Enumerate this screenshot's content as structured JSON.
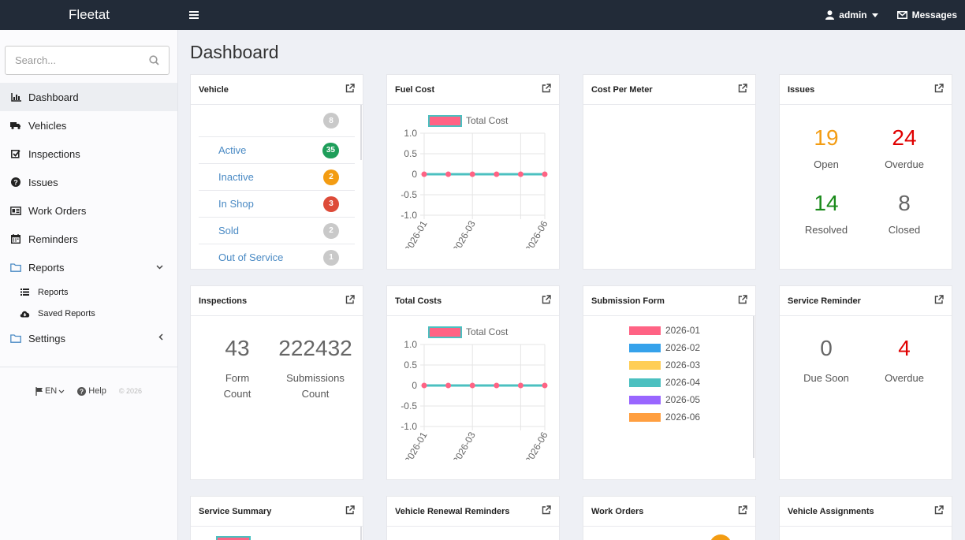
{
  "app": {
    "brand": "Fleetat"
  },
  "topbar": {
    "user": "admin",
    "messages": "Messages"
  },
  "search": {
    "placeholder": "Search..."
  },
  "sidebar": {
    "items": [
      {
        "label": "Dashboard"
      },
      {
        "label": "Vehicles"
      },
      {
        "label": "Inspections"
      },
      {
        "label": "Issues"
      },
      {
        "label": "Work Orders"
      },
      {
        "label": "Reminders"
      },
      {
        "label": "Reports"
      },
      {
        "label": "Settings"
      }
    ],
    "reports_sub": [
      {
        "label": "Reports"
      },
      {
        "label": "Saved Reports"
      }
    ],
    "footer": {
      "lang": "EN",
      "help": "Help",
      "copyright": "© 2026"
    }
  },
  "page": {
    "title": "Dashboard"
  },
  "cards": {
    "vehicle": {
      "title": "Vehicle",
      "top_count": "8",
      "rows": [
        {
          "label": "Active",
          "count": "35",
          "color": "#1e9e5a"
        },
        {
          "label": "Inactive",
          "count": "2",
          "color": "#f39c12"
        },
        {
          "label": "In Shop",
          "count": "3",
          "color": "#dd4b39"
        },
        {
          "label": "Sold",
          "count": "2",
          "color": "#c9c9c9"
        },
        {
          "label": "Out of Service",
          "count": "1",
          "color": "#c9c9c9"
        }
      ]
    },
    "fuel_cost": {
      "title": "Fuel Cost"
    },
    "cost_per_meter": {
      "title": "Cost Per Meter"
    },
    "issues": {
      "title": "Issues",
      "stats": [
        {
          "value": "19",
          "label": "Open",
          "color": "#f39c12"
        },
        {
          "value": "24",
          "label": "Overdue",
          "color": "#e00000"
        },
        {
          "value": "14",
          "label": "Resolved",
          "color": "#1a8a1a"
        },
        {
          "value": "8",
          "label": "Closed",
          "color": "#666666"
        }
      ]
    },
    "inspections": {
      "title": "Inspections",
      "stats": [
        {
          "value": "43",
          "label": "Form Count"
        },
        {
          "value": "222432",
          "label": "Submissions Count"
        }
      ]
    },
    "total_costs": {
      "title": "Total Costs"
    },
    "submission_form": {
      "title": "Submission Form",
      "legend": [
        {
          "label": "2026-01",
          "color": "#ff6384"
        },
        {
          "label": "2026-02",
          "color": "#36a2eb"
        },
        {
          "label": "2026-03",
          "color": "#ffce56"
        },
        {
          "label": "2026-04",
          "color": "#4bc0c0"
        },
        {
          "label": "2026-05",
          "color": "#9966ff"
        },
        {
          "label": "2026-06",
          "color": "#ff9f40"
        }
      ]
    },
    "service_reminder": {
      "title": "Service Reminder",
      "stats": [
        {
          "value": "0",
          "label": "Due Soon",
          "color": "#666666"
        },
        {
          "value": "4",
          "label": "Overdue",
          "color": "#e00000"
        }
      ]
    },
    "service_summary": {
      "title": "Service Summary"
    },
    "vehicle_renewal": {
      "title": "Vehicle Renewal Reminders"
    },
    "work_orders": {
      "title": "Work Orders"
    },
    "vehicle_assignments": {
      "title": "Vehicle Assignments"
    }
  },
  "chart_data": [
    {
      "type": "line",
      "legend": [
        "Total Cost"
      ],
      "x": [
        "2026-01",
        "2026-02",
        "2026-03",
        "2026-04",
        "2026-05",
        "2026-06"
      ],
      "x_tick_labels": [
        "2026-01",
        "2026-03",
        "2026-06"
      ],
      "series": [
        {
          "name": "Total Cost",
          "values": [
            0,
            0,
            0,
            0,
            0,
            0
          ]
        }
      ],
      "ylim": [
        -1.0,
        1.0
      ],
      "y_ticks": [
        "1.0",
        "0.5",
        "0",
        "-0.5",
        "-1.0"
      ],
      "grid": true,
      "colors": {
        "line": "#4bc0c0",
        "point": "#ff6384",
        "legend_fill": "#ff6384",
        "legend_border": "#4bc0c0"
      }
    },
    {
      "type": "line",
      "legend": [
        "Total Cost"
      ],
      "x": [
        "2026-01",
        "2026-02",
        "2026-03",
        "2026-04",
        "2026-05",
        "2026-06"
      ],
      "x_tick_labels": [
        "2026-01",
        "2026-03",
        "2026-06"
      ],
      "series": [
        {
          "name": "Total Cost",
          "values": [
            0,
            0,
            0,
            0,
            0,
            0
          ]
        }
      ],
      "ylim": [
        -1.0,
        1.0
      ],
      "y_ticks": [
        "1.0",
        "0.5",
        "0",
        "-0.5",
        "-1.0"
      ],
      "grid": true,
      "colors": {
        "line": "#4bc0c0",
        "point": "#ff6384",
        "legend_fill": "#ff6384",
        "legend_border": "#4bc0c0"
      }
    }
  ]
}
